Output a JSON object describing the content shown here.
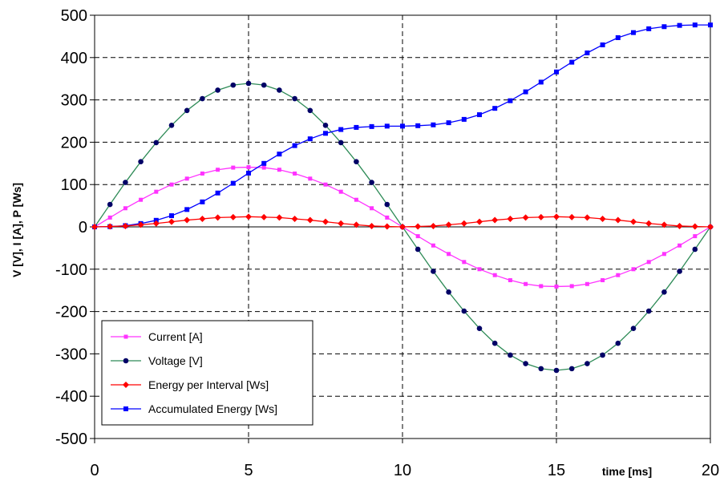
{
  "chart_data": {
    "type": "line",
    "title": "",
    "xlabel": "time [ms]",
    "ylabel": "V [V], I [A], P [Ws]",
    "xlim": [
      0,
      20
    ],
    "ylim": [
      -500,
      500
    ],
    "x_ticks": [
      0,
      5,
      10,
      15,
      20
    ],
    "y_ticks": [
      500,
      400,
      300,
      200,
      100,
      0,
      -100,
      -200,
      -300,
      -400,
      -500
    ],
    "grid": true,
    "legend_position": "bottom-left",
    "x": [
      0,
      0.5,
      1,
      1.5,
      2,
      2.5,
      3,
      3.5,
      4,
      4.5,
      5,
      5.5,
      6,
      6.5,
      7,
      7.5,
      8,
      8.5,
      9,
      9.5,
      10,
      10.5,
      11,
      11.5,
      12,
      12.5,
      13,
      13.5,
      14,
      14.5,
      15,
      15.5,
      16,
      16.5,
      17,
      17.5,
      18,
      18.5,
      19,
      19.5,
      20
    ],
    "series": [
      {
        "name": "Current [A]",
        "color": "#ff33ff",
        "line_color": "#ff33ff",
        "marker": "square",
        "values": [
          0,
          22,
          44,
          64,
          83,
          100,
          114,
          126,
          135,
          140,
          141,
          140,
          135,
          126,
          114,
          100,
          83,
          64,
          44,
          22,
          0,
          -22,
          -44,
          -64,
          -83,
          -100,
          -114,
          -126,
          -135,
          -140,
          -141,
          -140,
          -135,
          -126,
          -114,
          -100,
          -83,
          -64,
          -44,
          -22,
          0
        ]
      },
      {
        "name": "Voltage [V]",
        "color": "#000066",
        "line_color": "#2e8b57",
        "marker": "circle",
        "values": [
          0,
          53,
          105,
          154,
          199,
          240,
          275,
          303,
          323,
          335,
          339,
          335,
          323,
          303,
          275,
          240,
          199,
          154,
          105,
          53,
          0,
          -53,
          -105,
          -154,
          -199,
          -240,
          -275,
          -303,
          -323,
          -335,
          -339,
          -335,
          -323,
          -303,
          -275,
          -240,
          -199,
          -154,
          -105,
          -53,
          0
        ]
      },
      {
        "name": "Energy per Interval [Ws]",
        "color": "#ff0000",
        "line_color": "#ff0000",
        "marker": "diamond",
        "values": [
          0,
          1,
          2,
          5,
          8,
          12,
          16,
          19,
          22,
          23,
          24,
          23,
          22,
          19,
          16,
          12,
          8,
          5,
          2,
          1,
          0,
          1,
          2,
          5,
          8,
          12,
          16,
          19,
          22,
          23,
          24,
          23,
          22,
          19,
          16,
          12,
          8,
          5,
          2,
          1,
          0
        ]
      },
      {
        "name": "Accumulated Energy [Ws]",
        "color": "#0000ff",
        "line_color": "#0000ff",
        "marker": "square",
        "values": [
          0,
          0.6,
          2.9,
          7.9,
          15.5,
          26.4,
          41,
          59,
          80,
          103,
          127,
          150,
          172,
          192,
          208,
          221,
          230,
          235,
          237,
          238,
          238,
          239,
          241,
          246,
          254,
          265,
          280,
          298,
          319,
          342,
          366,
          389,
          411,
          430,
          447,
          459,
          468,
          473,
          476,
          477,
          477
        ]
      }
    ]
  }
}
